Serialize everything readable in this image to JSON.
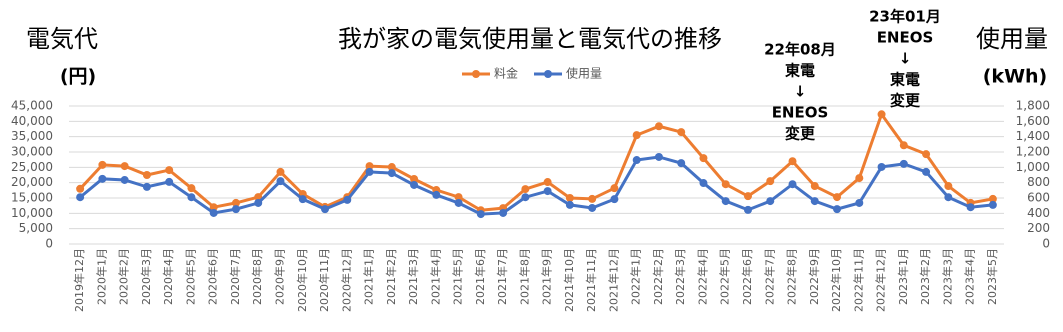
{
  "chart_data": {
    "type": "line",
    "title": "我が家の電気使用量と電気代の推移",
    "y_title": "電気代",
    "y_unit": "(円)",
    "y2_title": "使用量",
    "y2_unit": "(kWh)",
    "categories": [
      "2019年12月",
      "2020年1月",
      "2020年2月",
      "2020年3月",
      "2020年4月",
      "2020年5月",
      "2020年6月",
      "2020年7月",
      "2020年8月",
      "2020年9月",
      "2020年10月",
      "2020年11月",
      "2020年12月",
      "2021年1月",
      "2021年2月",
      "2021年3月",
      "2021年4月",
      "2021年5月",
      "2021年6月",
      "2021年7月",
      "2021年8月",
      "2021年9月",
      "2021年10月",
      "2021年11月",
      "2021年12月",
      "2022年1月",
      "2022年2月",
      "2022年3月",
      "2022年4月",
      "2022年5月",
      "2022年6月",
      "2022年7月",
      "2022年8月",
      "2022年9月",
      "2022年10月",
      "2022年11月",
      "2022年12月",
      "2023年1月",
      "2023年2月",
      "2023年3月",
      "2023年4月",
      "2023年5月"
    ],
    "series": [
      {
        "name": "料金",
        "color": "#ed7d31",
        "values": [
          18000,
          25800,
          25400,
          22500,
          24100,
          18200,
          12000,
          13400,
          15300,
          23500,
          16300,
          12100,
          15300,
          25400,
          25100,
          21200,
          17600,
          15300,
          11000,
          11700,
          17900,
          20200,
          15000,
          14700,
          18200,
          35500,
          38400,
          36500,
          28000,
          19500,
          15600,
          20500,
          27000,
          18900,
          15300,
          21500,
          42300,
          32200,
          29300,
          18900,
          13400,
          14700
        ]
      },
      {
        "name": "使用量",
        "color": "#4472c4",
        "axis": "y2",
        "values": [
          610,
          850,
          835,
          745,
          810,
          610,
          405,
          455,
          535,
          820,
          585,
          455,
          575,
          940,
          925,
          770,
          640,
          535,
          390,
          405,
          610,
          690,
          510,
          470,
          585,
          1095,
          1135,
          1055,
          795,
          560,
          445,
          560,
          780,
          560,
          455,
          535,
          1005,
          1045,
          940,
          610,
          480,
          510
        ]
      }
    ],
    "ylim": [
      0,
      45000
    ],
    "yticks": [
      0,
      {
        "value": 5000,
        "label": "5,000"
      },
      {
        "value": 10000,
        "label": "10,000"
      },
      {
        "value": 15000,
        "label": "15,000"
      },
      {
        "value": 20000,
        "label": "20,000"
      },
      {
        "value": 25000,
        "label": "25,000"
      },
      {
        "value": 30000,
        "label": "30,000"
      },
      {
        "value": 35000,
        "label": "35,000"
      },
      {
        "value": 40000,
        "label": "40,000"
      },
      {
        "value": 45000,
        "label": "45,000"
      }
    ],
    "y2lim": [
      0,
      1800
    ],
    "y2ticks": [
      0,
      200,
      400,
      600,
      800,
      {
        "value": 1000,
        "label": "1,000"
      },
      {
        "value": 1200,
        "label": "1,200"
      },
      {
        "value": 1400,
        "label": "1,400"
      },
      {
        "value": 1600,
        "label": "1,600"
      },
      {
        "value": 1800,
        "label": "1,800"
      }
    ],
    "grid": true,
    "legend": "top",
    "annotations": [
      {
        "lines": [
          "22年08月",
          "東電",
          "↓",
          "ENEOS",
          "変更"
        ]
      },
      {
        "lines": [
          "23年01月",
          "ENEOS",
          "↓",
          "東電",
          "変更"
        ]
      }
    ]
  }
}
